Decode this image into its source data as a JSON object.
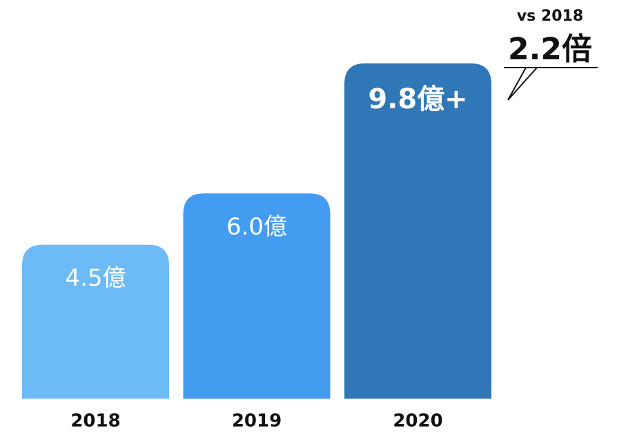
{
  "chart_data": {
    "type": "bar",
    "categories": [
      "2018",
      "2019",
      "2020"
    ],
    "values": [
      4.5,
      6.0,
      9.8
    ],
    "value_labels": [
      "4.5億",
      "6.0億",
      "9.8億+"
    ],
    "colors": [
      "#6cbaf6",
      "#439cf0",
      "#2f77b6"
    ],
    "annotations": [
      "vs 2018",
      "2.2倍"
    ]
  }
}
